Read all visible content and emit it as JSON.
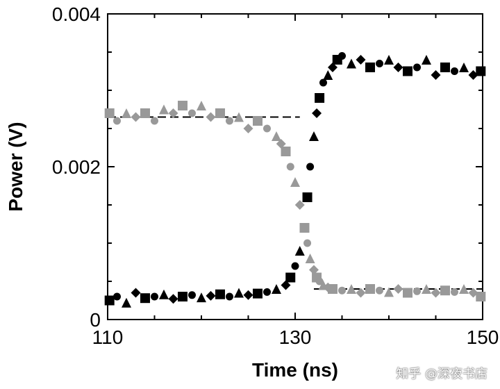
{
  "chart_data": {
    "type": "scatter",
    "title": "",
    "xlabel": "Time (ns)",
    "ylabel": "Power (V)",
    "xlim": [
      110,
      150
    ],
    "ylim": [
      0,
      0.004
    ],
    "x_ticks": [
      "110",
      "130",
      "150"
    ],
    "y_ticks": [
      "0",
      "0.002",
      "0.004"
    ],
    "grid": false,
    "legend": "none",
    "reference_lines": [
      {
        "from_x": 110,
        "to_x": 130.5,
        "y": 0.00265,
        "style": "dashed"
      },
      {
        "from_x": 132,
        "to_x": 150,
        "y": 0.0004,
        "style": "dashed"
      }
    ],
    "series": [
      {
        "color": "#000000",
        "markers": [
          "square",
          "circle",
          "triangle",
          "diamond"
        ],
        "x": [
          110.2,
          111,
          112,
          113,
          114,
          115,
          116,
          117,
          118,
          119,
          120,
          121,
          122,
          123,
          124,
          125,
          126,
          127,
          128,
          129,
          129.5,
          130,
          130.5,
          131,
          131.3,
          131.6,
          132,
          132.3,
          132.6,
          133,
          133.5,
          134,
          134.5,
          135,
          136,
          137,
          138,
          139,
          140,
          141,
          142,
          143,
          144,
          145,
          146,
          147,
          148,
          149,
          149.8
        ],
        "y": [
          0.00025,
          0.0003,
          0.00022,
          0.00035,
          0.00028,
          0.0003,
          0.00033,
          0.00027,
          0.0003,
          0.00032,
          0.00029,
          0.00031,
          0.00033,
          0.0003,
          0.00035,
          0.00032,
          0.00034,
          0.00036,
          0.0004,
          0.00045,
          0.00055,
          0.0007,
          0.0009,
          0.0012,
          0.0016,
          0.002,
          0.0024,
          0.0027,
          0.0029,
          0.0031,
          0.0032,
          0.0033,
          0.0034,
          0.00345,
          0.00335,
          0.0034,
          0.0033,
          0.00335,
          0.0034,
          0.0033,
          0.00325,
          0.0033,
          0.0034,
          0.0032,
          0.0033,
          0.00325,
          0.0033,
          0.0032,
          0.00325
        ]
      },
      {
        "color": "#999999",
        "markers": [
          "square",
          "circle",
          "triangle",
          "diamond"
        ],
        "x": [
          110.2,
          111,
          112,
          113,
          114,
          115,
          116,
          117,
          118,
          119,
          120,
          121,
          122,
          123,
          124,
          125,
          126,
          127,
          128,
          128.5,
          129,
          129.5,
          130,
          130.5,
          131,
          131.3,
          131.6,
          132,
          132.3,
          132.6,
          133,
          133.5,
          134,
          135,
          136,
          137,
          138,
          139,
          140,
          141,
          142,
          143,
          144,
          145,
          146,
          147,
          148,
          149,
          149.8
        ],
        "y": [
          0.0027,
          0.0026,
          0.0027,
          0.00265,
          0.0027,
          0.0026,
          0.00275,
          0.0027,
          0.0028,
          0.0027,
          0.0028,
          0.00265,
          0.0027,
          0.0026,
          0.00265,
          0.0025,
          0.0026,
          0.0025,
          0.0024,
          0.0023,
          0.0022,
          0.002,
          0.0018,
          0.0015,
          0.0012,
          0.001,
          0.0008,
          0.00065,
          0.00055,
          0.0005,
          0.00045,
          0.00042,
          0.0004,
          0.00038,
          0.0004,
          0.00035,
          0.0004,
          0.00038,
          0.00036,
          0.0004,
          0.00035,
          0.00037,
          0.0004,
          0.00035,
          0.00038,
          0.00036,
          0.0004,
          0.00035,
          0.0003
        ]
      }
    ]
  },
  "watermark": "知乎 @深夜书店"
}
